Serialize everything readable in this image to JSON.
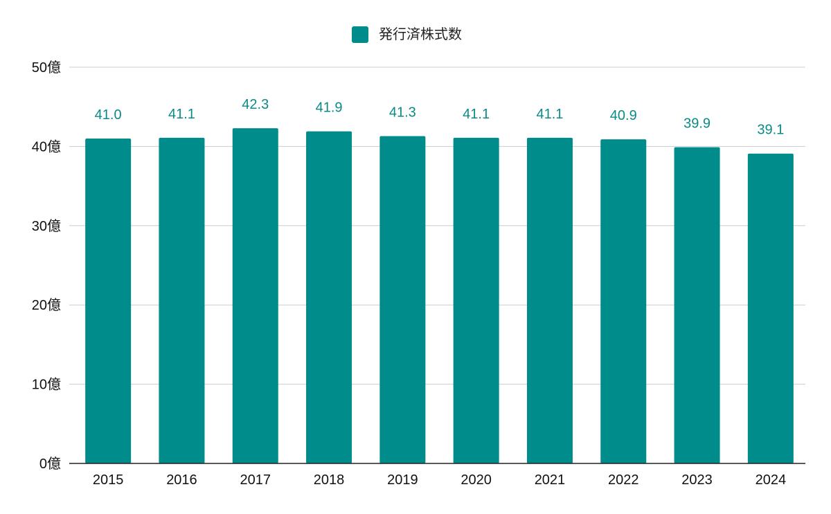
{
  "chart_data": {
    "type": "bar",
    "title": "",
    "xlabel": "",
    "ylabel": "",
    "categories": [
      "2015",
      "2016",
      "2017",
      "2018",
      "2019",
      "2020",
      "2021",
      "2022",
      "2023",
      "2024"
    ],
    "series": [
      {
        "name": "発行済株式数",
        "values": [
          41.0,
          41.1,
          42.3,
          41.9,
          41.3,
          41.1,
          41.1,
          40.9,
          39.9,
          39.1
        ],
        "labels": [
          "41.0",
          "41.1",
          "42.3",
          "41.9",
          "41.3",
          "41.1",
          "41.1",
          "40.9",
          "39.9",
          "39.1"
        ]
      }
    ],
    "ylim": [
      0,
      50
    ],
    "yticks": [
      0,
      10,
      20,
      30,
      40,
      50
    ],
    "ytick_labels": [
      "0億",
      "10億",
      "20億",
      "30億",
      "40億",
      "50億"
    ],
    "grid": true,
    "legend_position": "top-center",
    "colors": {
      "bar": "#008c8a",
      "data_label": "#0a8a86",
      "grid": "#cccccc",
      "axis": "#222222"
    }
  }
}
